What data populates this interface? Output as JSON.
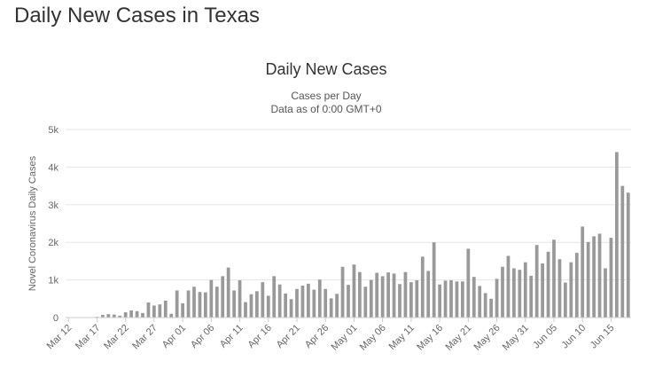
{
  "page": {
    "title": "Daily New Cases in Texas"
  },
  "chart_data": {
    "type": "bar",
    "title": "Daily New Cases",
    "subtitle": [
      "Cases per Day",
      "Data as of 0:00 GMT+0"
    ],
    "xlabel": "",
    "ylabel": "Novel Coronavirus Daily Cases",
    "ylim": [
      0,
      5000
    ],
    "yticks": [
      0,
      1000,
      2000,
      3000,
      4000,
      5000
    ],
    "ytick_labels": [
      "0",
      "1k",
      "2k",
      "3k",
      "4k",
      "5k"
    ],
    "grid": true,
    "bar_color": "#999999",
    "categories": [
      "Mar 12",
      "Mar 13",
      "Mar 14",
      "Mar 15",
      "Mar 16",
      "Mar 17",
      "Mar 18",
      "Mar 19",
      "Mar 20",
      "Mar 21",
      "Mar 22",
      "Mar 23",
      "Mar 24",
      "Mar 25",
      "Mar 26",
      "Mar 27",
      "Mar 28",
      "Mar 29",
      "Mar 30",
      "Mar 31",
      "Apr 01",
      "Apr 02",
      "Apr 03",
      "Apr 04",
      "Apr 05",
      "Apr 06",
      "Apr 07",
      "Apr 08",
      "Apr 09",
      "Apr 10",
      "Apr 11",
      "Apr 12",
      "Apr 13",
      "Apr 14",
      "Apr 15",
      "Apr 16",
      "Apr 17",
      "Apr 18",
      "Apr 19",
      "Apr 20",
      "Apr 21",
      "Apr 22",
      "Apr 23",
      "Apr 24",
      "Apr 25",
      "Apr 26",
      "Apr 27",
      "Apr 28",
      "Apr 29",
      "Apr 30",
      "May 01",
      "May 02",
      "May 03",
      "May 04",
      "May 05",
      "May 06",
      "May 07",
      "May 08",
      "May 09",
      "May 10",
      "May 11",
      "May 12",
      "May 13",
      "May 14",
      "May 15",
      "May 16",
      "May 17",
      "May 18",
      "May 19",
      "May 20",
      "May 21",
      "May 22",
      "May 23",
      "May 24",
      "May 25",
      "May 26",
      "May 27",
      "May 28",
      "May 29",
      "May 30",
      "May 31",
      "Jun 01",
      "Jun 02",
      "Jun 03",
      "Jun 04",
      "Jun 05",
      "Jun 06",
      "Jun 07",
      "Jun 08",
      "Jun 09",
      "Jun 10",
      "Jun 11",
      "Jun 12",
      "Jun 13",
      "Jun 14",
      "Jun 15",
      "Jun 16",
      "Jun 17",
      "Jun 18"
    ],
    "tick_labels": [
      "Mar 12",
      "Mar 17",
      "Mar 22",
      "Mar 27",
      "Apr 01",
      "Apr 06",
      "Apr 11",
      "Apr 16",
      "Apr 21",
      "Apr 26",
      "May 01",
      "May 06",
      "May 11",
      "May 16",
      "May 21",
      "May 26",
      "May 31",
      "Jun 05",
      "Jun 10",
      "Jun 15"
    ],
    "values": [
      0,
      0,
      0,
      0,
      0,
      20,
      70,
      90,
      80,
      50,
      140,
      190,
      170,
      120,
      400,
      320,
      350,
      450,
      100,
      720,
      380,
      720,
      820,
      680,
      670,
      1000,
      820,
      1100,
      1330,
      720,
      990,
      410,
      620,
      700,
      940,
      580,
      1100,
      880,
      640,
      490,
      760,
      850,
      900,
      740,
      1010,
      760,
      510,
      630,
      1350,
      870,
      1410,
      1210,
      820,
      1000,
      1190,
      1100,
      1200,
      1170,
      890,
      1210,
      940,
      990,
      1620,
      1240,
      2000,
      880,
      980,
      990,
      960,
      960,
      1830,
      1080,
      840,
      650,
      500,
      1030,
      1350,
      1640,
      1310,
      1270,
      1470,
      1110,
      1930,
      1440,
      1750,
      2070,
      1550,
      930,
      1470,
      1720,
      2420,
      2010,
      2160,
      2230,
      1310,
      2120,
      4400,
      3500,
      3320
    ]
  }
}
